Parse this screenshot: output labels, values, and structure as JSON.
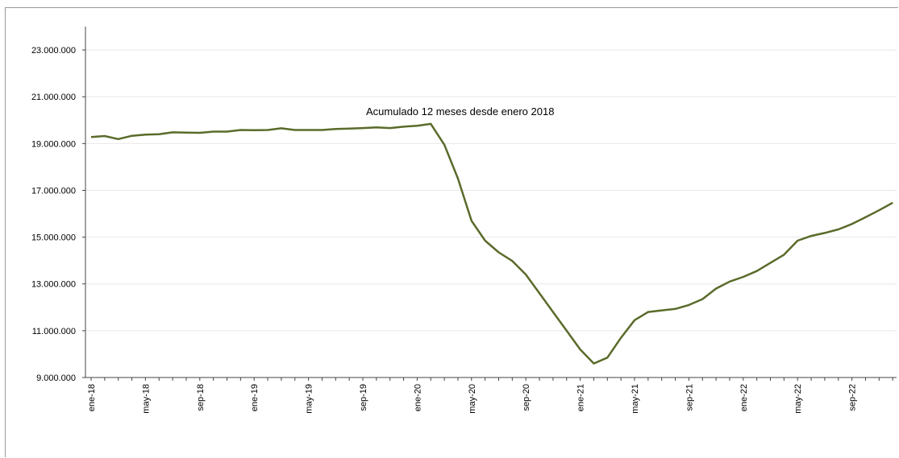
{
  "chart_data": {
    "type": "line",
    "title": "Acumulado  12 meses desde enero 2018",
    "xlabel": "",
    "ylabel": "",
    "ylim": [
      9000000,
      24000000
    ],
    "y_ticks": [
      9000000,
      11000000,
      13000000,
      15000000,
      17000000,
      19000000,
      21000000,
      23000000
    ],
    "y_tick_labels": [
      "9.000.000",
      "11.000.000",
      "13.000.000",
      "15.000.000",
      "17.000.000",
      "19.000.000",
      "21.000.000",
      "23.000.000"
    ],
    "x": [
      "ene-18",
      "feb-18",
      "mar-18",
      "abr-18",
      "may-18",
      "jun-18",
      "jul-18",
      "ago-18",
      "sep-18",
      "oct-18",
      "nov-18",
      "dic-18",
      "ene-19",
      "feb-19",
      "mar-19",
      "abr-19",
      "may-19",
      "jun-19",
      "jul-19",
      "ago-19",
      "sep-19",
      "oct-19",
      "nov-19",
      "dic-19",
      "ene-20",
      "feb-20",
      "mar-20",
      "abr-20",
      "may-20",
      "jun-20",
      "jul-20",
      "ago-20",
      "sep-20",
      "oct-20",
      "nov-20",
      "dic-20",
      "ene-21",
      "feb-21",
      "mar-21",
      "abr-21",
      "may-21",
      "jun-21",
      "jul-21",
      "ago-21",
      "sep-21",
      "oct-21",
      "nov-21",
      "dic-21",
      "ene-22",
      "feb-22",
      "mar-22",
      "abr-22",
      "may-22",
      "jun-22",
      "jul-22",
      "ago-22",
      "sep-22",
      "oct-22",
      "nov-22",
      "dic-22"
    ],
    "x_tick_labels": [
      "ene-18",
      "may-18",
      "sep-18",
      "ene-19",
      "may-19",
      "sep-19",
      "ene-20",
      "may-20",
      "sep-20",
      "ene-21",
      "may-21",
      "sep-21",
      "ene-22",
      "may-22",
      "sep-22"
    ],
    "series": [
      {
        "values": [
          19280000,
          19320000,
          19190000,
          19330000,
          19380000,
          19400000,
          19480000,
          19470000,
          19460000,
          19510000,
          19510000,
          19580000,
          19570000,
          19580000,
          19650000,
          19580000,
          19580000,
          19580000,
          19620000,
          19640000,
          19660000,
          19690000,
          19660000,
          19720000,
          19760000,
          19840000,
          18950000,
          17500000,
          15700000,
          14850000,
          14350000,
          13980000,
          13400000,
          12600000,
          11800000,
          11000000,
          10200000,
          9600000,
          9850000,
          10700000,
          11450000,
          11800000,
          11870000,
          11930000,
          12100000,
          12350000,
          12800000,
          13100000,
          13300000,
          13550000,
          13900000,
          14250000,
          14850000,
          15050000,
          15180000,
          15330000,
          15560000,
          15850000,
          16150000,
          16470000
        ]
      }
    ],
    "colors": {
      "line": "#5a6b2a",
      "grid": "#e8e8e8",
      "axis": "#444444"
    },
    "grid": true,
    "legend": "none"
  }
}
